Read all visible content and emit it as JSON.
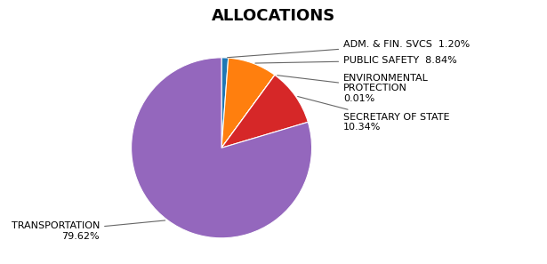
{
  "chart_data": {
    "type": "pie",
    "title": "ALLOCATIONS",
    "categories": [
      "ADM. & FIN. SVCS  1.20%",
      "PUBLIC SAFETY  8.84%",
      "ENVIRONMENTAL\nPROTECTION\n0.01%",
      "SECRETARY OF STATE\n10.34%",
      "TRANSPORTATION\n79.62%"
    ],
    "values": [
      1.2,
      8.84,
      0.01,
      10.34,
      79.62
    ]
  }
}
